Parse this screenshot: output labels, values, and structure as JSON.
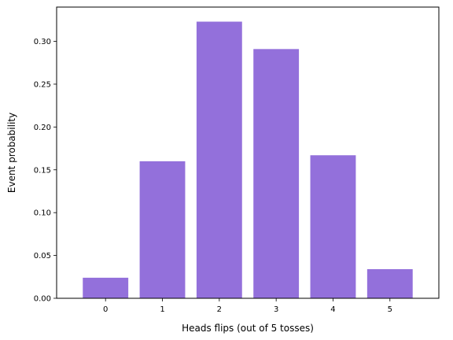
{
  "chart_data": {
    "type": "bar",
    "title": "",
    "xlabel": "Heads flips (out of 5 tosses)",
    "ylabel": "Event probability",
    "categories": [
      "0",
      "1",
      "2",
      "3",
      "4",
      "5"
    ],
    "values": [
      0.024,
      0.16,
      0.323,
      0.291,
      0.167,
      0.034
    ],
    "ylim": [
      0,
      0.34
    ],
    "yticks": [
      "0.00",
      "0.05",
      "0.10",
      "0.15",
      "0.20",
      "0.25",
      "0.30"
    ],
    "bar_color": "#9370DB",
    "grid": false,
    "legend": "none"
  }
}
